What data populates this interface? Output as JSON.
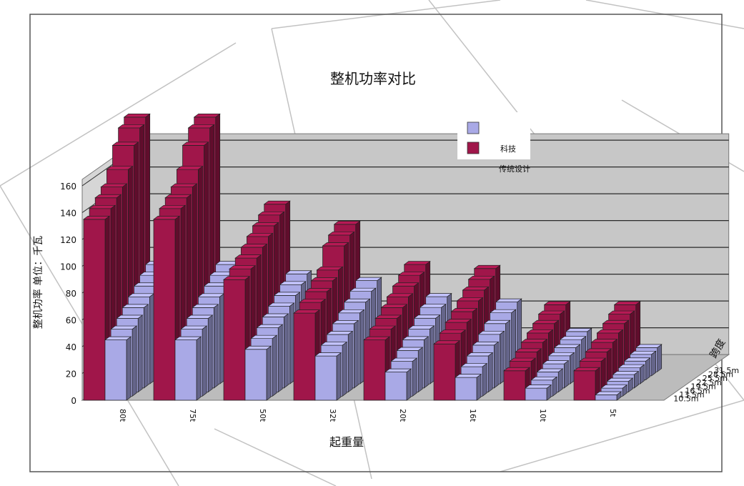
{
  "chart_data": {
    "type": "bar",
    "title": "整机功率对比",
    "xlabel": "起重量",
    "ylabel": "整机功率 单位：千瓦",
    "zlabel": "跨度",
    "ylim": [
      0,
      160
    ],
    "yticks": [
      "0",
      "20",
      "40",
      "60",
      "80",
      "100",
      "120",
      "140",
      "160"
    ],
    "categories": [
      "80t",
      "75t",
      "50t",
      "32t",
      "20t",
      "16t",
      "10t",
      "5t"
    ],
    "depth_categories": [
      "10.5m",
      "13.5m",
      "16.5m",
      "19.5m",
      "22.5m",
      "25.5m",
      "28.5m",
      "31.5m"
    ],
    "legend": {
      "position": "top-right",
      "entries": [
        "",
        "科技",
        "传统设计"
      ]
    },
    "series": [
      {
        "values": [
          [
            45,
            50,
            55,
            60,
            65,
            70,
            75,
            80
          ],
          [
            45,
            50,
            55,
            60,
            65,
            70,
            75,
            80
          ],
          [
            38,
            43,
            48,
            53,
            58,
            63,
            68,
            73
          ],
          [
            33,
            38,
            43,
            48,
            53,
            58,
            63,
            68
          ],
          [
            21,
            26,
            31,
            36,
            41,
            46,
            51,
            56
          ],
          [
            17,
            22,
            27,
            32,
            37,
            42,
            47,
            52
          ],
          [
            9,
            12,
            15,
            18,
            21,
            24,
            27,
            30
          ],
          [
            4,
            6,
            8,
            10,
            12,
            14,
            16,
            18
          ]
        ]
      },
      {
        "values": [
          [
            135,
            140,
            145,
            150,
            160,
            175,
            185,
            190
          ],
          [
            135,
            140,
            145,
            150,
            160,
            175,
            185,
            190
          ],
          [
            90,
            95,
            100,
            105,
            110,
            115,
            120,
            125
          ],
          [
            65,
            70,
            75,
            80,
            85,
            100,
            105,
            110
          ],
          [
            45,
            50,
            55,
            60,
            65,
            70,
            75,
            80
          ],
          [
            42,
            47,
            52,
            57,
            62,
            67,
            72,
            77
          ],
          [
            22,
            26,
            30,
            34,
            38,
            42,
            46,
            50
          ],
          [
            22,
            26,
            30,
            34,
            38,
            42,
            46,
            50
          ]
        ]
      }
    ],
    "colors": {
      "series0": "#a9a9e6",
      "series1": "#a0164a",
      "wall": "#c7c7c7",
      "floor": "#bcbcbc",
      "grid": "#2a2a2a"
    }
  }
}
